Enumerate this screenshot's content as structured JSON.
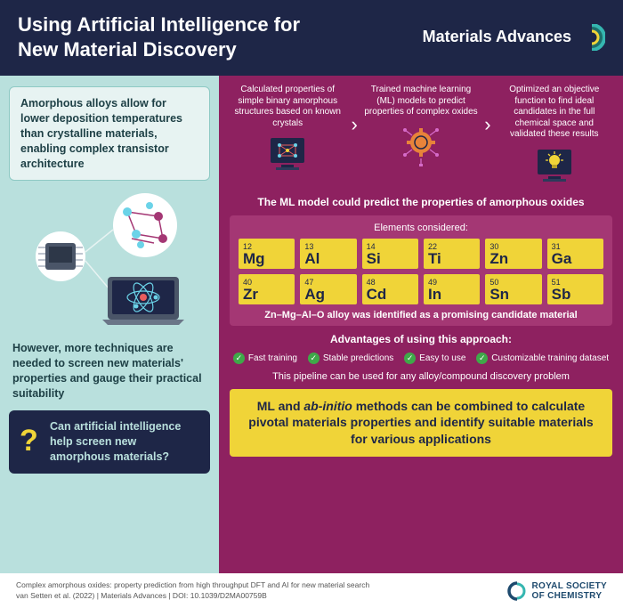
{
  "header": {
    "title_line1": "Using Artificial Intelligence for",
    "title_line2": "New Material Discovery",
    "brand": "Materials Advances",
    "brand_colors": [
      "#35b6b0",
      "#1e6e6a",
      "#f0d438"
    ]
  },
  "colors": {
    "header_bg": "#1e2647",
    "left_bg": "#b9e0dd",
    "right_bg": "#8e2160",
    "element_bg": "#f0d438",
    "info_bg": "#e7f3f2",
    "check_bg": "#3fa849"
  },
  "left": {
    "info1": "Amorphous alloys allow for lower deposition temperatures than crystalline materials, enabling complex transistor architecture",
    "info2": "However, more techniques are needed to screen new materials' properties and gauge their practical suitability",
    "question": "Can artificial intelligence help screen new amorphous materials?"
  },
  "right": {
    "steps": [
      "Calculated properties of simple binary amorphous structures based on known crystals",
      "Trained machine learning (ML) models to predict properties of complex oxides",
      "Optimized an objective function to find ideal candidates in the full chemical space and validated these results"
    ],
    "ml_label": "The ML model could predict the properties of amorphous oxides",
    "elements_label": "Elements considered:",
    "elements": [
      {
        "num": "12",
        "sym": "Mg"
      },
      {
        "num": "13",
        "sym": "Al"
      },
      {
        "num": "14",
        "sym": "Si"
      },
      {
        "num": "22",
        "sym": "Ti"
      },
      {
        "num": "30",
        "sym": "Zn"
      },
      {
        "num": "31",
        "sym": "Ga"
      },
      {
        "num": "40",
        "sym": "Zr"
      },
      {
        "num": "47",
        "sym": "Ag"
      },
      {
        "num": "48",
        "sym": "Cd"
      },
      {
        "num": "49",
        "sym": "In"
      },
      {
        "num": "50",
        "sym": "Sn"
      },
      {
        "num": "51",
        "sym": "Sb"
      }
    ],
    "result_line": "Zn–Mg–Al–O alloy was identified as a promising candidate material",
    "advantages_label": "Advantages of using this approach:",
    "advantages": [
      "Fast training",
      "Stable predictions",
      "Easy to use",
      "Customizable training dataset"
    ],
    "pipeline_line": "This pipeline can be used for any alloy/compound discovery problem",
    "conclusion_html": "ML and <em>ab-initio</em> methods can be combined to calculate pivotal materials properties and identify suitable materials for various applications"
  },
  "footer": {
    "line1": "Complex amorphous oxides: property prediction from high throughput DFT and AI for new material search",
    "line2": "van Setten et al. (2022)  |  Materials Advances  |  DOI: 10.1039/D2MA00759B",
    "rsc": "ROYAL SOCIETY OF CHEMISTRY"
  }
}
